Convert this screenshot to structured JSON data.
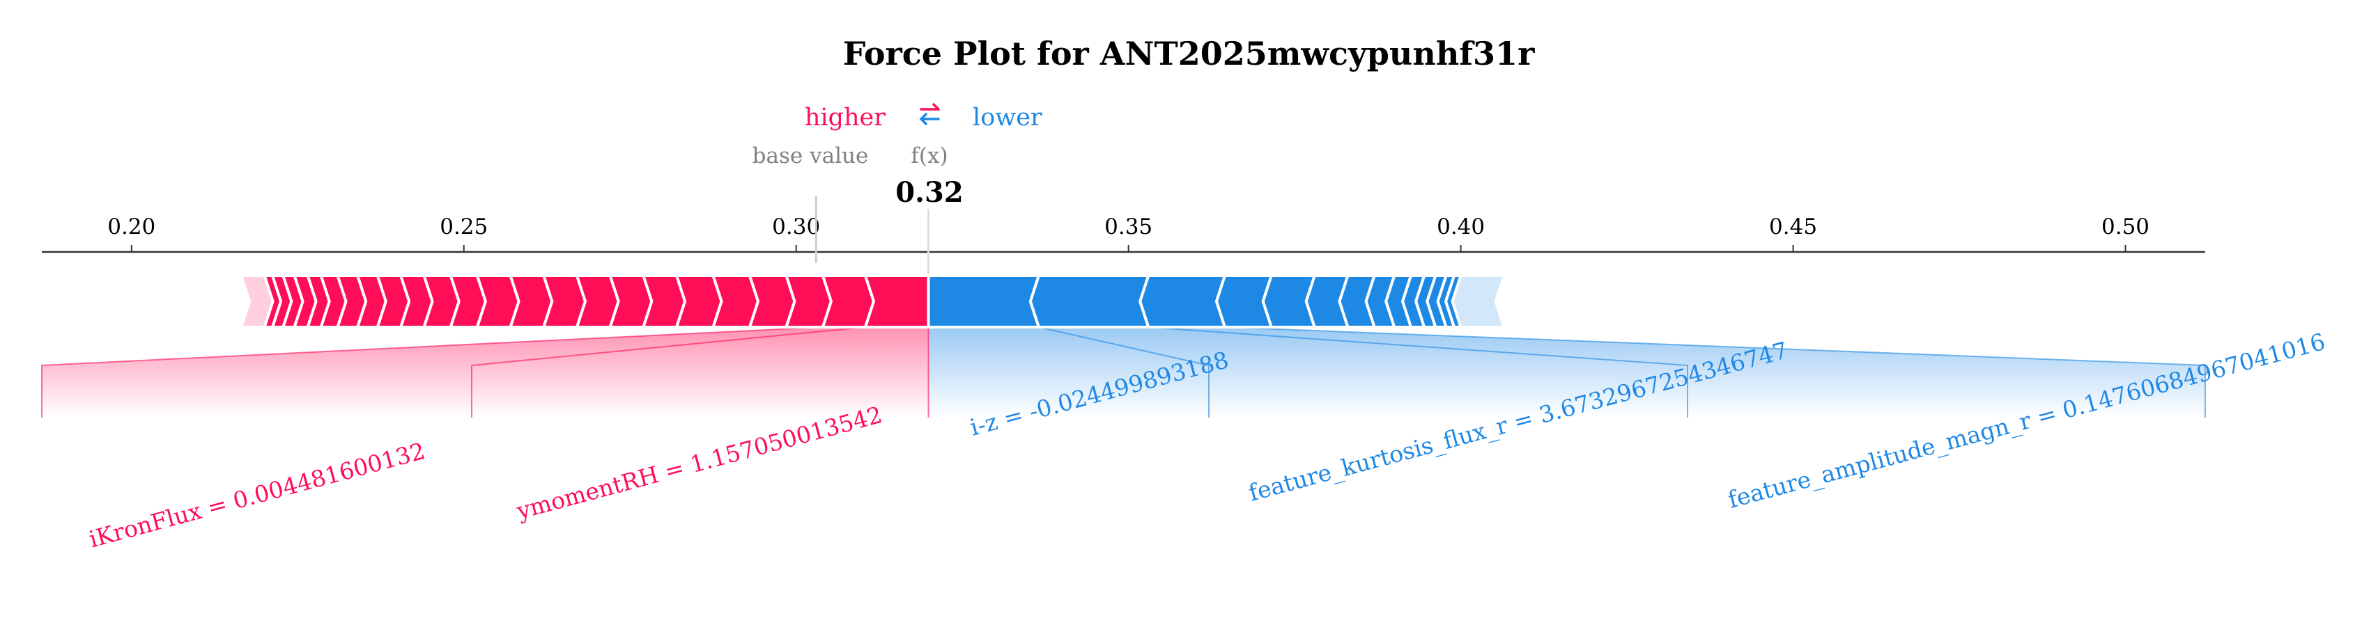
{
  "chart_data": {
    "type": "force",
    "title": "Force Plot for ANT2025mwcypunhf31r",
    "legend": {
      "higher": "higher",
      "lower": "lower",
      "higher_color": "#ff0d57",
      "lower_color": "#1e88e5"
    },
    "base_value_label": "base value",
    "fx_label": "f(x)",
    "base_value": 0.303,
    "fx": 0.3199,
    "fx_display": "0.32",
    "xlim": [
      0.1865,
      0.512
    ],
    "ticks": [
      0.2,
      0.25,
      0.3,
      0.35,
      0.4,
      0.45,
      0.5
    ],
    "tick_labels": [
      "0.20",
      "0.25",
      "0.30",
      "0.35",
      "0.40",
      "0.45",
      "0.50"
    ],
    "positive_range": [
      0.2165,
      0.3199
    ],
    "negative_range": [
      0.3199,
      0.4065
    ],
    "positive_feature": {
      "labels": [
        "ymomentRH = 1.157050013542",
        "iKronFlux = 0.004481600132"
      ],
      "segment_bounds": [
        0.3199,
        0.3104,
        0.304,
        0.2985,
        0.293,
        0.2875,
        0.282,
        0.277,
        0.272,
        0.267,
        0.262,
        0.257,
        0.252,
        0.248,
        0.244,
        0.2405,
        0.237,
        0.234,
        0.231,
        0.2285,
        0.2265,
        0.2245,
        0.2228,
        0.2212,
        0.22,
        0.2165
      ]
    },
    "negative_feature": {
      "labels": [
        "i-z = -0.024499893188",
        "feature_kurtosis_flux_r = 3.6732967254346747",
        "feature_amplitude_magn_r = 0.14760684967041016"
      ],
      "segment_bounds": [
        0.3199,
        0.3365,
        0.353,
        0.3645,
        0.3715,
        0.378,
        0.383,
        0.387,
        0.39,
        0.3925,
        0.3945,
        0.3962,
        0.3978,
        0.399,
        0.4,
        0.4065
      ]
    }
  }
}
